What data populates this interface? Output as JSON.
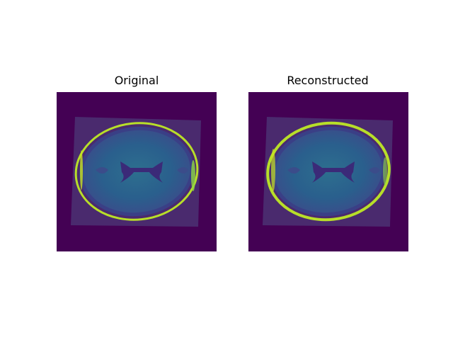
{
  "figure": {
    "panels": [
      {
        "title": "Original",
        "image_alt": "axial brain MRI slice (original)"
      },
      {
        "title": "Reconstructed",
        "image_alt": "axial brain MRI slice (reconstructed)"
      }
    ],
    "colormap": {
      "background": "#440154",
      "low": "#3b2a78",
      "mid": "#2c7a8c",
      "high": "#2fb47c",
      "bright": "#c9e41f"
    }
  }
}
